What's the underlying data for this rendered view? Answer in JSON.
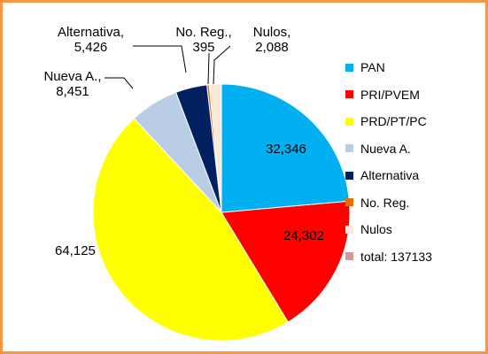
{
  "chart_data": {
    "type": "pie",
    "categories": [
      "PAN",
      "PRI/PVEM",
      "PRD/PT/PC",
      "Nueva A.",
      "Alternativa",
      "No. Reg.",
      "Nulos"
    ],
    "values": [
      32346,
      24302,
      64125,
      8451,
      5426,
      395,
      2088
    ],
    "value_labels": [
      "32,346",
      "24,302",
      "64,125",
      "Nueva A., 8,451",
      "Alternativa, 5,426",
      "No. Reg., 395",
      "Nulos, 2,088"
    ],
    "colors": [
      "#00b0f0",
      "#ff0000",
      "#ffff00",
      "#b9cde5",
      "#002060",
      "#e46c0a",
      "#fde9d9"
    ],
    "total": {
      "label": "total: 137133",
      "color": "#d99694"
    },
    "legend": "right"
  }
}
